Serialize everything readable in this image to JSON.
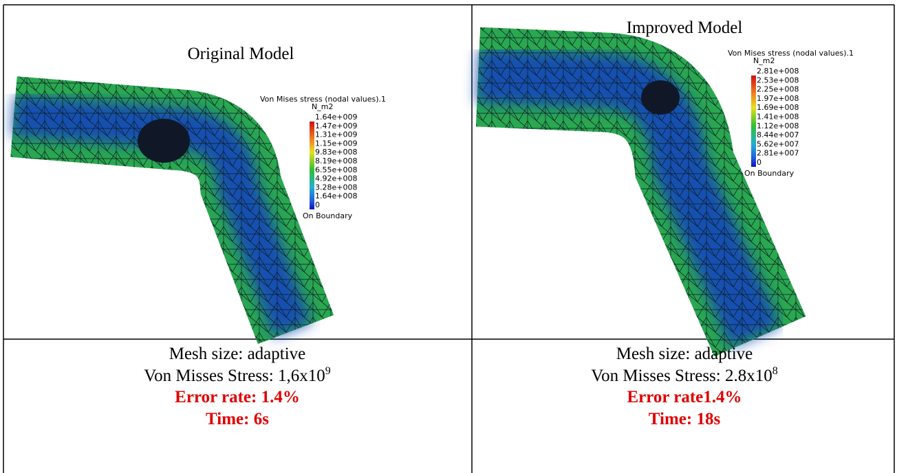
{
  "left": {
    "title": "Original Model",
    "legend": {
      "title": "Von Mises stress (nodal values).1",
      "unit": "N_m2",
      "values": [
        "1.64e+009",
        "1.47e+009",
        "1.31e+009",
        "1.15e+009",
        "9.83e+008",
        "8.19e+008",
        "6.55e+008",
        "4.92e+008",
        "3.28e+008",
        "1.64e+008",
        "0"
      ],
      "footer": "On Boundary"
    },
    "mesh": "Mesh size: adaptive",
    "stress": {
      "text": "Von Misses Stress: 1,6x10",
      "exponent": "9"
    },
    "error": "Error rate: 1.4%",
    "time": "Time: 6s"
  },
  "right": {
    "title": "Improved Model",
    "legend": {
      "title": "Von Mises stress (nodal values).1",
      "unit": "N_m2",
      "values": [
        "2.81e+008",
        "2.53e+008",
        "2.25e+008",
        "1.97e+008",
        "1.69e+008",
        "1.41e+008",
        "1.12e+008",
        "8.44e+007",
        "5.62e+007",
        "2.81e+007",
        "0"
      ],
      "footer": "On Boundary"
    },
    "mesh": "Mesh size: adaptive",
    "stress": {
      "text": "Von Misses Stress: 2.8x10",
      "exponent": "8"
    },
    "error": "Error rate1.4%",
    "time": "Time:  18s"
  }
}
